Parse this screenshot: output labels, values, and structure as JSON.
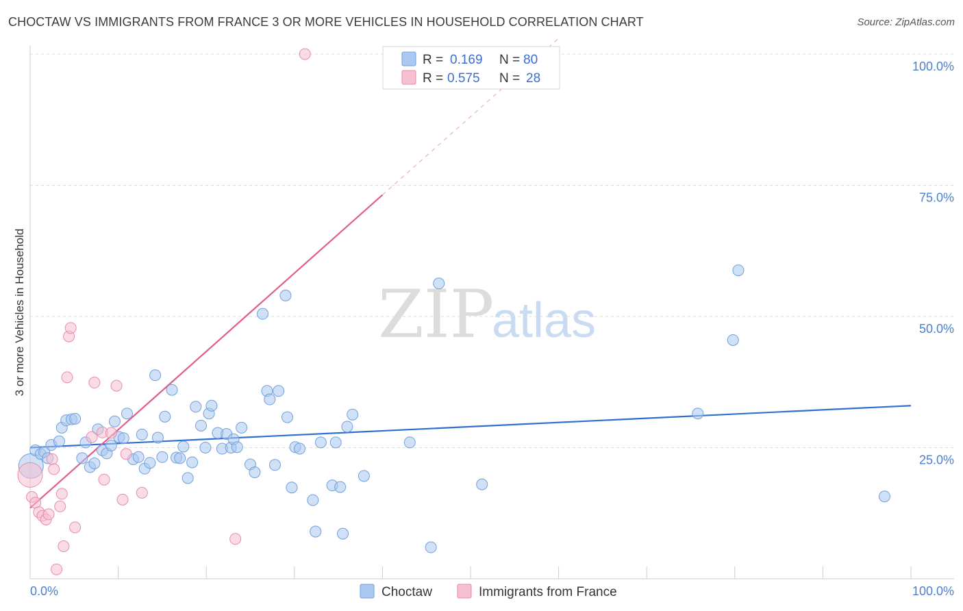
{
  "title": "CHOCTAW VS IMMIGRANTS FROM FRANCE 3 OR MORE VEHICLES IN HOUSEHOLD CORRELATION CHART",
  "source": "Source: ZipAtlas.com",
  "watermark": {
    "zip": "ZIP",
    "atlas": "atlas"
  },
  "colors": {
    "blue_fill": "#aac8f0",
    "blue_stroke": "#6f9fdc",
    "blue_line": "#2f6fd0",
    "pink_fill": "#f6c0d2",
    "pink_stroke": "#e98aab",
    "pink_line": "#e05c8a",
    "tick_text": "#4a7fd0",
    "grid": "#dddddd"
  },
  "legend": {
    "rows": [
      {
        "r_label": "R =",
        "r_value": "0.169",
        "n_label": "N =",
        "n_value": "80",
        "color": "blue"
      },
      {
        "r_label": "R =",
        "r_value": "0.575",
        "n_label": "N =",
        "n_value": "28",
        "color": "pink"
      }
    ]
  },
  "bottom_legend": [
    {
      "label": "Choctaw",
      "color": "blue"
    },
    {
      "label": "Immigrants from France",
      "color": "pink"
    }
  ],
  "chart_data": {
    "type": "scatter",
    "title": "CHOCTAW VS IMMIGRANTS FROM FRANCE 3 OR MORE VEHICLES IN HOUSEHOLD CORRELATION CHART",
    "xlabel": "",
    "ylabel": "3 or more Vehicles in Household",
    "xlim": [
      0,
      100
    ],
    "ylim": [
      0,
      100
    ],
    "x_tick_labels": {
      "left": "0.0%",
      "right": "100.0%"
    },
    "y_ticks": [
      {
        "value": 25,
        "label": "25.0%"
      },
      {
        "value": 50,
        "label": "50.0%"
      },
      {
        "value": 75,
        "label": "75.0%"
      },
      {
        "value": 100,
        "label": "100.0%"
      }
    ],
    "grid": true,
    "series": [
      {
        "name": "Choctaw",
        "color": "blue",
        "R": 0.169,
        "N": 80,
        "trend": {
          "x0": 0,
          "y0": 25.0,
          "x1": 100,
          "y1": 33.0,
          "solid_until": 100
        },
        "points": [
          [
            0.1,
            21.5
          ],
          [
            0.6,
            24.5
          ],
          [
            1.2,
            23.8
          ],
          [
            1.6,
            24.2
          ],
          [
            2.0,
            23.0
          ],
          [
            2.4,
            25.5
          ],
          [
            3.3,
            26.2
          ],
          [
            3.6,
            28.8
          ],
          [
            4.1,
            30.2
          ],
          [
            4.7,
            30.4
          ],
          [
            5.1,
            30.5
          ],
          [
            5.9,
            23.0
          ],
          [
            6.3,
            26.0
          ],
          [
            6.8,
            21.3
          ],
          [
            7.3,
            22.0
          ],
          [
            7.7,
            28.5
          ],
          [
            8.2,
            24.5
          ],
          [
            8.7,
            23.9
          ],
          [
            9.2,
            25.4
          ],
          [
            9.6,
            30.0
          ],
          [
            10.1,
            27.0
          ],
          [
            10.6,
            26.8
          ],
          [
            11.0,
            31.5
          ],
          [
            11.7,
            22.8
          ],
          [
            12.3,
            23.2
          ],
          [
            12.7,
            27.5
          ],
          [
            13.0,
            21.0
          ],
          [
            13.6,
            22.1
          ],
          [
            14.2,
            38.8
          ],
          [
            14.5,
            26.9
          ],
          [
            15.0,
            23.2
          ],
          [
            15.3,
            30.9
          ],
          [
            16.1,
            36.0
          ],
          [
            16.6,
            23.1
          ],
          [
            17.0,
            23.0
          ],
          [
            17.4,
            25.2
          ],
          [
            17.9,
            19.2
          ],
          [
            18.4,
            22.2
          ],
          [
            18.8,
            32.8
          ],
          [
            19.4,
            29.2
          ],
          [
            19.9,
            25.0
          ],
          [
            20.3,
            31.5
          ],
          [
            20.6,
            33.0
          ],
          [
            21.3,
            27.8
          ],
          [
            21.8,
            24.8
          ],
          [
            22.3,
            27.6
          ],
          [
            22.8,
            25.0
          ],
          [
            23.1,
            26.6
          ],
          [
            23.5,
            25.1
          ],
          [
            24.0,
            28.8
          ],
          [
            25.0,
            21.8
          ],
          [
            25.5,
            20.3
          ],
          [
            26.4,
            50.5
          ],
          [
            26.9,
            35.8
          ],
          [
            27.2,
            34.2
          ],
          [
            27.8,
            21.7
          ],
          [
            28.2,
            35.8
          ],
          [
            29.0,
            54.0
          ],
          [
            29.2,
            30.8
          ],
          [
            29.7,
            17.4
          ],
          [
            30.1,
            25.1
          ],
          [
            30.6,
            24.8
          ],
          [
            32.1,
            15.0
          ],
          [
            32.4,
            9.0
          ],
          [
            33.0,
            26.0
          ],
          [
            34.3,
            17.8
          ],
          [
            34.7,
            26.0
          ],
          [
            35.2,
            17.5
          ],
          [
            35.5,
            8.6
          ],
          [
            36.0,
            29.0
          ],
          [
            36.6,
            31.3
          ],
          [
            37.9,
            19.6
          ],
          [
            43.1,
            26.0
          ],
          [
            45.5,
            6.0
          ],
          [
            46.4,
            56.3
          ],
          [
            51.3,
            18.0
          ],
          [
            75.8,
            31.5
          ],
          [
            79.8,
            45.5
          ],
          [
            80.4,
            58.8
          ],
          [
            97.0,
            15.7
          ]
        ]
      },
      {
        "name": "Immigrants from France",
        "color": "pink",
        "R": 0.575,
        "N": 28,
        "trend": {
          "x0": 0,
          "y0": 13.5,
          "x1": 60,
          "y1": 103.0,
          "solid_until": 40
        },
        "points": [
          [
            0.0,
            19.8
          ],
          [
            0.2,
            15.6
          ],
          [
            0.6,
            14.5
          ],
          [
            1.0,
            12.7
          ],
          [
            1.4,
            12.0
          ],
          [
            1.8,
            11.3
          ],
          [
            2.1,
            12.3
          ],
          [
            2.5,
            22.8
          ],
          [
            2.7,
            20.9
          ],
          [
            3.0,
            1.8
          ],
          [
            3.4,
            13.8
          ],
          [
            3.6,
            16.2
          ],
          [
            3.8,
            6.2
          ],
          [
            4.2,
            38.4
          ],
          [
            4.4,
            46.2
          ],
          [
            4.6,
            47.8
          ],
          [
            5.1,
            9.8
          ],
          [
            7.0,
            27.0
          ],
          [
            7.3,
            37.4
          ],
          [
            8.2,
            27.9
          ],
          [
            8.4,
            18.9
          ],
          [
            9.2,
            27.8
          ],
          [
            9.8,
            36.8
          ],
          [
            10.5,
            15.1
          ],
          [
            10.9,
            23.8
          ],
          [
            12.7,
            16.4
          ],
          [
            23.3,
            7.6
          ],
          [
            31.2,
            100.0
          ]
        ]
      }
    ]
  }
}
